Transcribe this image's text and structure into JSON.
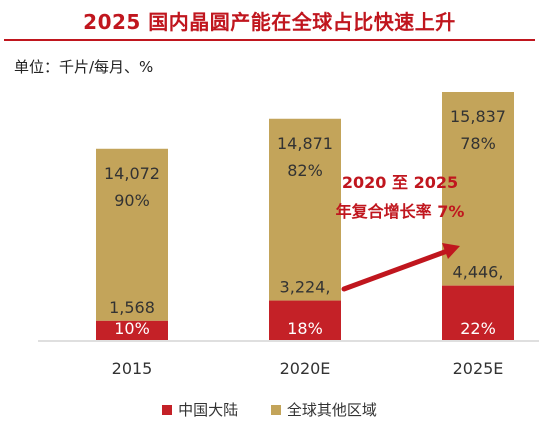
{
  "chart_data": {
    "type": "bar",
    "stacked": true,
    "title": "2025 国内晶圆产能在全球占比快速上升",
    "unit_label": "单位：千片/每月、%",
    "categories": [
      "2015",
      "2020E",
      "2025E"
    ],
    "series": [
      {
        "name": "中国大陆",
        "color": "#c42127",
        "values": [
          1568,
          3224,
          4446
        ],
        "value_labels": [
          "1,568",
          "3,224,",
          "4,446,"
        ],
        "pct_labels": [
          "10%",
          "18%",
          "22%"
        ]
      },
      {
        "name": "全球其他区域",
        "color": "#c3a45a",
        "values": [
          14072,
          14871,
          15837
        ],
        "value_labels": [
          "14,072",
          "14,871",
          "15,837"
        ],
        "pct_labels": [
          "90%",
          "82%",
          "78%"
        ]
      }
    ],
    "annotation": {
      "line1": "2020 至 2025",
      "line2": "年复合增长率 7%",
      "color": "#c0161e"
    },
    "xlabel": "",
    "ylabel": "",
    "legend_position": "bottom",
    "grid": false
  }
}
